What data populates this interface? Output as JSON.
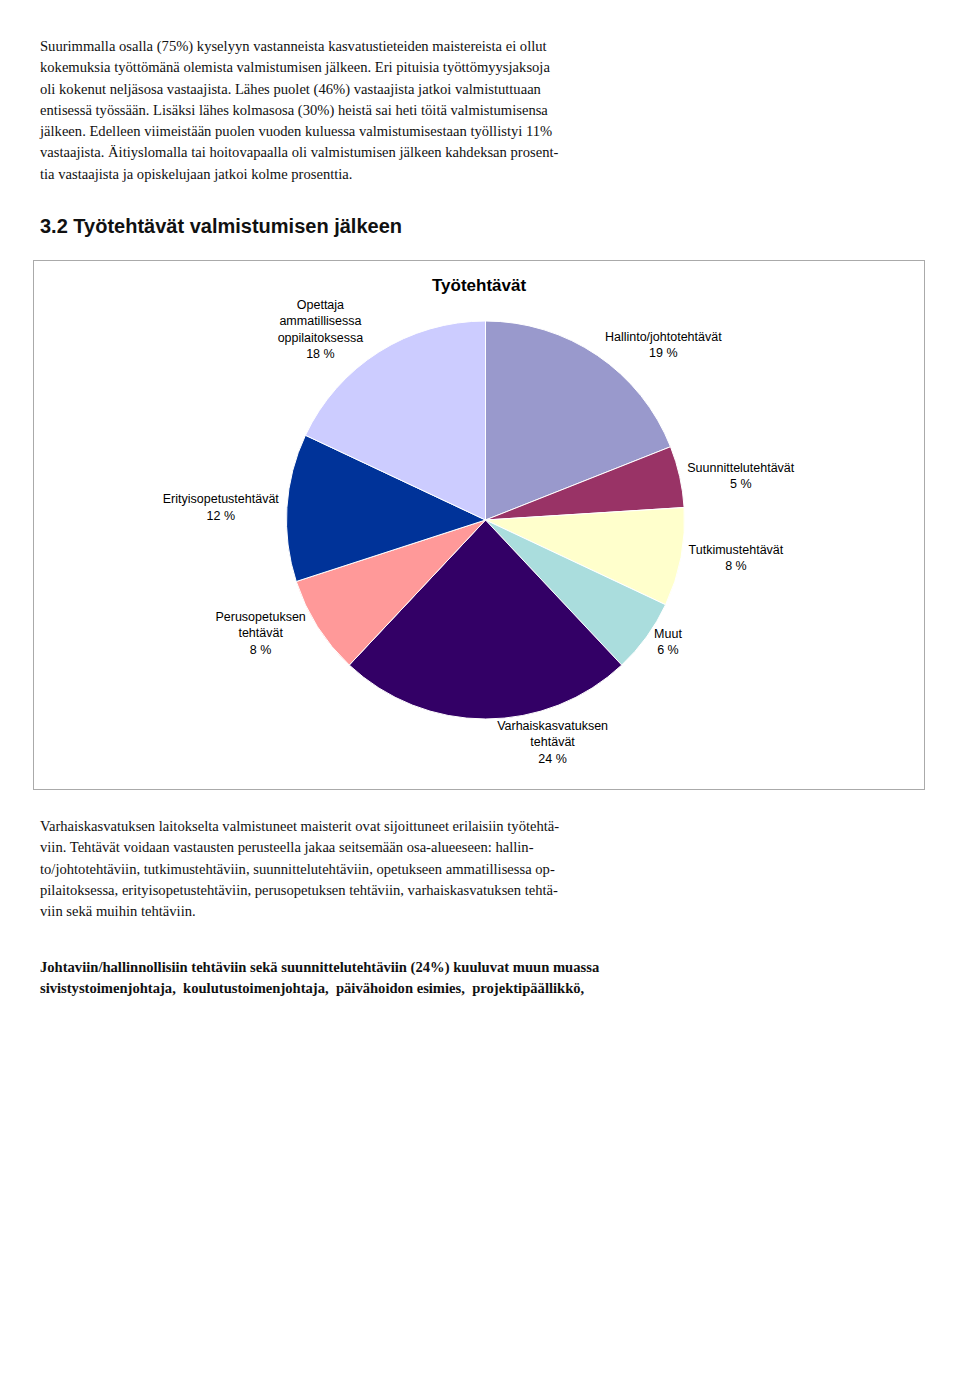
{
  "text_before": [
    "Suurimmalla osalla (75%) kyselyyn vastanneista kasvatustieteiden maistereista ei ollut",
    "kokemuksia työttömänä olemista valmistumisen jälkeen. Eri pituisia työttömyysjaksoja",
    "oli kokenut neljäsosa vastaajista. Lähes puolet (46%) vastaajista jatkoi valmistuttuaan",
    "entisessä työssään. Lisäksi lähes kolmasosa (30%) heistä sai heti töitä valmistumisensa",
    "jälkeen. Edelleen viimeistään puolen vuoden kuluessa valmistumisestaan työllistyi 11%",
    "vastaajista. Äitiyslomalla tai hoitovapaalla oli valmistumisen jälkeen kahdeksan prosent-",
    "tia vastaajista ja opiskelujaan jatkoi kolme prosenttia."
  ],
  "section_title": "3.2 Työtehtävät valmistumisen jälkeen",
  "text_after": [
    "Varhaiskasvatuksen laitokselta valmistuneet maisterit ovat sijoittuneet erilaisiin työtehtä-",
    "viin. Tehtävät voidaan vastausten perusteella jakaa seitsemään osa-alueeseen: hallin-",
    "to/johtotehtäviin, tutkimustehtäviin, suunnittelutehtäviin, opetukseen ammatillisessa op-",
    "pilaitoksessa, erityisopetustehtäviin, perusopetuksen tehtäviin, varhaiskasvatuksen tehtä-",
    "viin sekä muihin tehtäviin."
  ],
  "text_bold": [
    "Johtaviin/hallinnollisiin tehtäviin sekä suunnittelutehtäviin (24%) kuuluvat muun muassa",
    "sivistystoimenjohtaja,  koulutustoimenjohtaja,  päivähoidon esimies,  projektipäällikkö,"
  ],
  "chart_data": {
    "type": "pie",
    "title": "Työtehtävät",
    "categories": [
      "Hallinto/johtotehtävät",
      "Suunnittelutehtävät",
      "Tutkimustehtävät",
      "Muut",
      "Varhaiskasvatuksen\ntehtävät",
      "Perusopetuksen\ntehtävät",
      "Erityisopetustehtävät",
      "Opettaja\nammatillisessa\noppilaitoksessa"
    ],
    "values": [
      19,
      5,
      8,
      6,
      24,
      8,
      12,
      18
    ],
    "value_labels": [
      "19 %",
      "5 %",
      "8 %",
      "6 %",
      "24 %",
      "8 %",
      "12 %",
      "18 %"
    ],
    "data_labels": true,
    "colors": [
      "#9999cc",
      "#993366",
      "#ffffcc",
      "#aadddd",
      "#330066",
      "#ff9999",
      "#003399",
      "#ccccff"
    ]
  }
}
